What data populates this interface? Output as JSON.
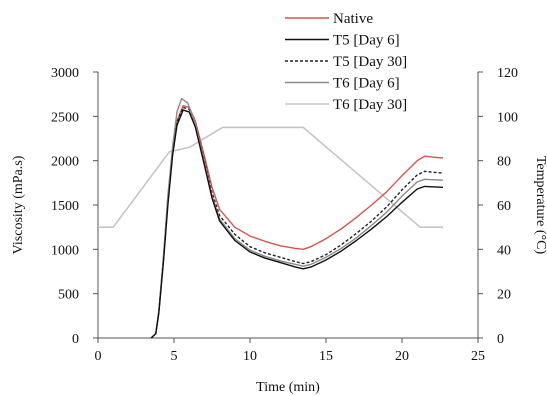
{
  "chart_data": {
    "type": "line",
    "xlabel": "Time (min)",
    "ylabel": "Viscosity (mPa.s)",
    "y2label": "Temperature (°C)",
    "xlim": [
      0,
      25
    ],
    "ylim": [
      0,
      3000
    ],
    "y2lim": [
      0,
      120
    ],
    "x_ticks": [
      "0",
      "5",
      "10",
      "15",
      "20",
      "25"
    ],
    "y_ticks": [
      "0",
      "500",
      "1000",
      "1500",
      "2000",
      "2500",
      "3000"
    ],
    "y2_ticks": [
      "0",
      "20",
      "40",
      "60",
      "80",
      "100",
      "120"
    ],
    "grid": false,
    "legend_position": "top-center",
    "series": [
      {
        "name": "Native",
        "axis": "left",
        "color": "#d9534f",
        "dash": "solid",
        "points": [
          [
            3.5,
            0
          ],
          [
            3.8,
            50
          ],
          [
            4.0,
            300
          ],
          [
            4.3,
            900
          ],
          [
            4.6,
            1600
          ],
          [
            4.9,
            2100
          ],
          [
            5.2,
            2450
          ],
          [
            5.6,
            2620
          ],
          [
            6.0,
            2600
          ],
          [
            6.4,
            2450
          ],
          [
            7.0,
            2050
          ],
          [
            7.5,
            1700
          ],
          [
            8.0,
            1450
          ],
          [
            9.0,
            1250
          ],
          [
            10.0,
            1150
          ],
          [
            11.0,
            1090
          ],
          [
            12.0,
            1040
          ],
          [
            13.0,
            1010
          ],
          [
            13.5,
            1000
          ],
          [
            14.0,
            1030
          ],
          [
            15.0,
            1120
          ],
          [
            16.0,
            1230
          ],
          [
            17.0,
            1360
          ],
          [
            18.0,
            1500
          ],
          [
            19.0,
            1650
          ],
          [
            20.0,
            1830
          ],
          [
            21.0,
            2000
          ],
          [
            21.5,
            2050
          ],
          [
            22.0,
            2040
          ],
          [
            22.7,
            2030
          ]
        ]
      },
      {
        "name": "T5 [Day 6]",
        "axis": "left",
        "color": "#111111",
        "dash": "solid",
        "points": [
          [
            3.5,
            0
          ],
          [
            3.8,
            50
          ],
          [
            4.0,
            280
          ],
          [
            4.3,
            850
          ],
          [
            4.6,
            1500
          ],
          [
            4.9,
            2050
          ],
          [
            5.2,
            2400
          ],
          [
            5.6,
            2570
          ],
          [
            6.0,
            2550
          ],
          [
            6.4,
            2380
          ],
          [
            7.0,
            1950
          ],
          [
            7.5,
            1580
          ],
          [
            8.0,
            1320
          ],
          [
            9.0,
            1100
          ],
          [
            10.0,
            970
          ],
          [
            11.0,
            900
          ],
          [
            12.0,
            850
          ],
          [
            13.0,
            800
          ],
          [
            13.5,
            780
          ],
          [
            14.0,
            800
          ],
          [
            15.0,
            880
          ],
          [
            16.0,
            980
          ],
          [
            17.0,
            1100
          ],
          [
            18.0,
            1230
          ],
          [
            19.0,
            1370
          ],
          [
            20.0,
            1530
          ],
          [
            21.0,
            1680
          ],
          [
            21.5,
            1710
          ],
          [
            22.0,
            1705
          ],
          [
            22.7,
            1700
          ]
        ]
      },
      {
        "name": "T5 [Day 30]",
        "axis": "left",
        "color": "#222222",
        "dash": "3,2",
        "points": [
          [
            3.5,
            0
          ],
          [
            3.8,
            50
          ],
          [
            4.0,
            290
          ],
          [
            4.3,
            880
          ],
          [
            4.6,
            1550
          ],
          [
            4.9,
            2080
          ],
          [
            5.2,
            2430
          ],
          [
            5.6,
            2600
          ],
          [
            6.0,
            2580
          ],
          [
            6.4,
            2420
          ],
          [
            7.0,
            2000
          ],
          [
            7.5,
            1640
          ],
          [
            8.0,
            1380
          ],
          [
            9.0,
            1170
          ],
          [
            10.0,
            1030
          ],
          [
            11.0,
            960
          ],
          [
            12.0,
            910
          ],
          [
            13.0,
            860
          ],
          [
            13.5,
            840
          ],
          [
            14.0,
            860
          ],
          [
            15.0,
            940
          ],
          [
            16.0,
            1050
          ],
          [
            17.0,
            1180
          ],
          [
            18.0,
            1320
          ],
          [
            19.0,
            1480
          ],
          [
            20.0,
            1670
          ],
          [
            21.0,
            1840
          ],
          [
            21.5,
            1880
          ],
          [
            22.0,
            1870
          ],
          [
            22.7,
            1860
          ]
        ]
      },
      {
        "name": "T6 [Day 6]",
        "axis": "left",
        "color": "#8a8a8a",
        "dash": "solid",
        "points": [
          [
            3.5,
            0
          ],
          [
            3.8,
            50
          ],
          [
            4.0,
            300
          ],
          [
            4.3,
            900
          ],
          [
            4.6,
            1600
          ],
          [
            4.9,
            2150
          ],
          [
            5.2,
            2550
          ],
          [
            5.5,
            2700
          ],
          [
            5.9,
            2650
          ],
          [
            6.4,
            2420
          ],
          [
            7.0,
            1980
          ],
          [
            7.5,
            1600
          ],
          [
            8.0,
            1340
          ],
          [
            9.0,
            1120
          ],
          [
            10.0,
            990
          ],
          [
            11.0,
            920
          ],
          [
            12.0,
            870
          ],
          [
            13.0,
            830
          ],
          [
            13.5,
            810
          ],
          [
            14.0,
            830
          ],
          [
            15.0,
            910
          ],
          [
            16.0,
            1010
          ],
          [
            17.0,
            1130
          ],
          [
            18.0,
            1270
          ],
          [
            19.0,
            1420
          ],
          [
            20.0,
            1600
          ],
          [
            21.0,
            1760
          ],
          [
            21.5,
            1790
          ],
          [
            22.0,
            1785
          ],
          [
            22.7,
            1780
          ]
        ]
      },
      {
        "name": "T6 [Day 30]",
        "axis": "right",
        "color": "#c4c4c4",
        "dash": "solid",
        "points": [
          [
            0,
            50
          ],
          [
            1,
            50
          ],
          [
            4.7,
            84
          ],
          [
            6,
            86
          ],
          [
            8.2,
            95
          ],
          [
            13.5,
            95
          ],
          [
            21.2,
            50
          ],
          [
            22.7,
            50
          ]
        ]
      }
    ]
  }
}
